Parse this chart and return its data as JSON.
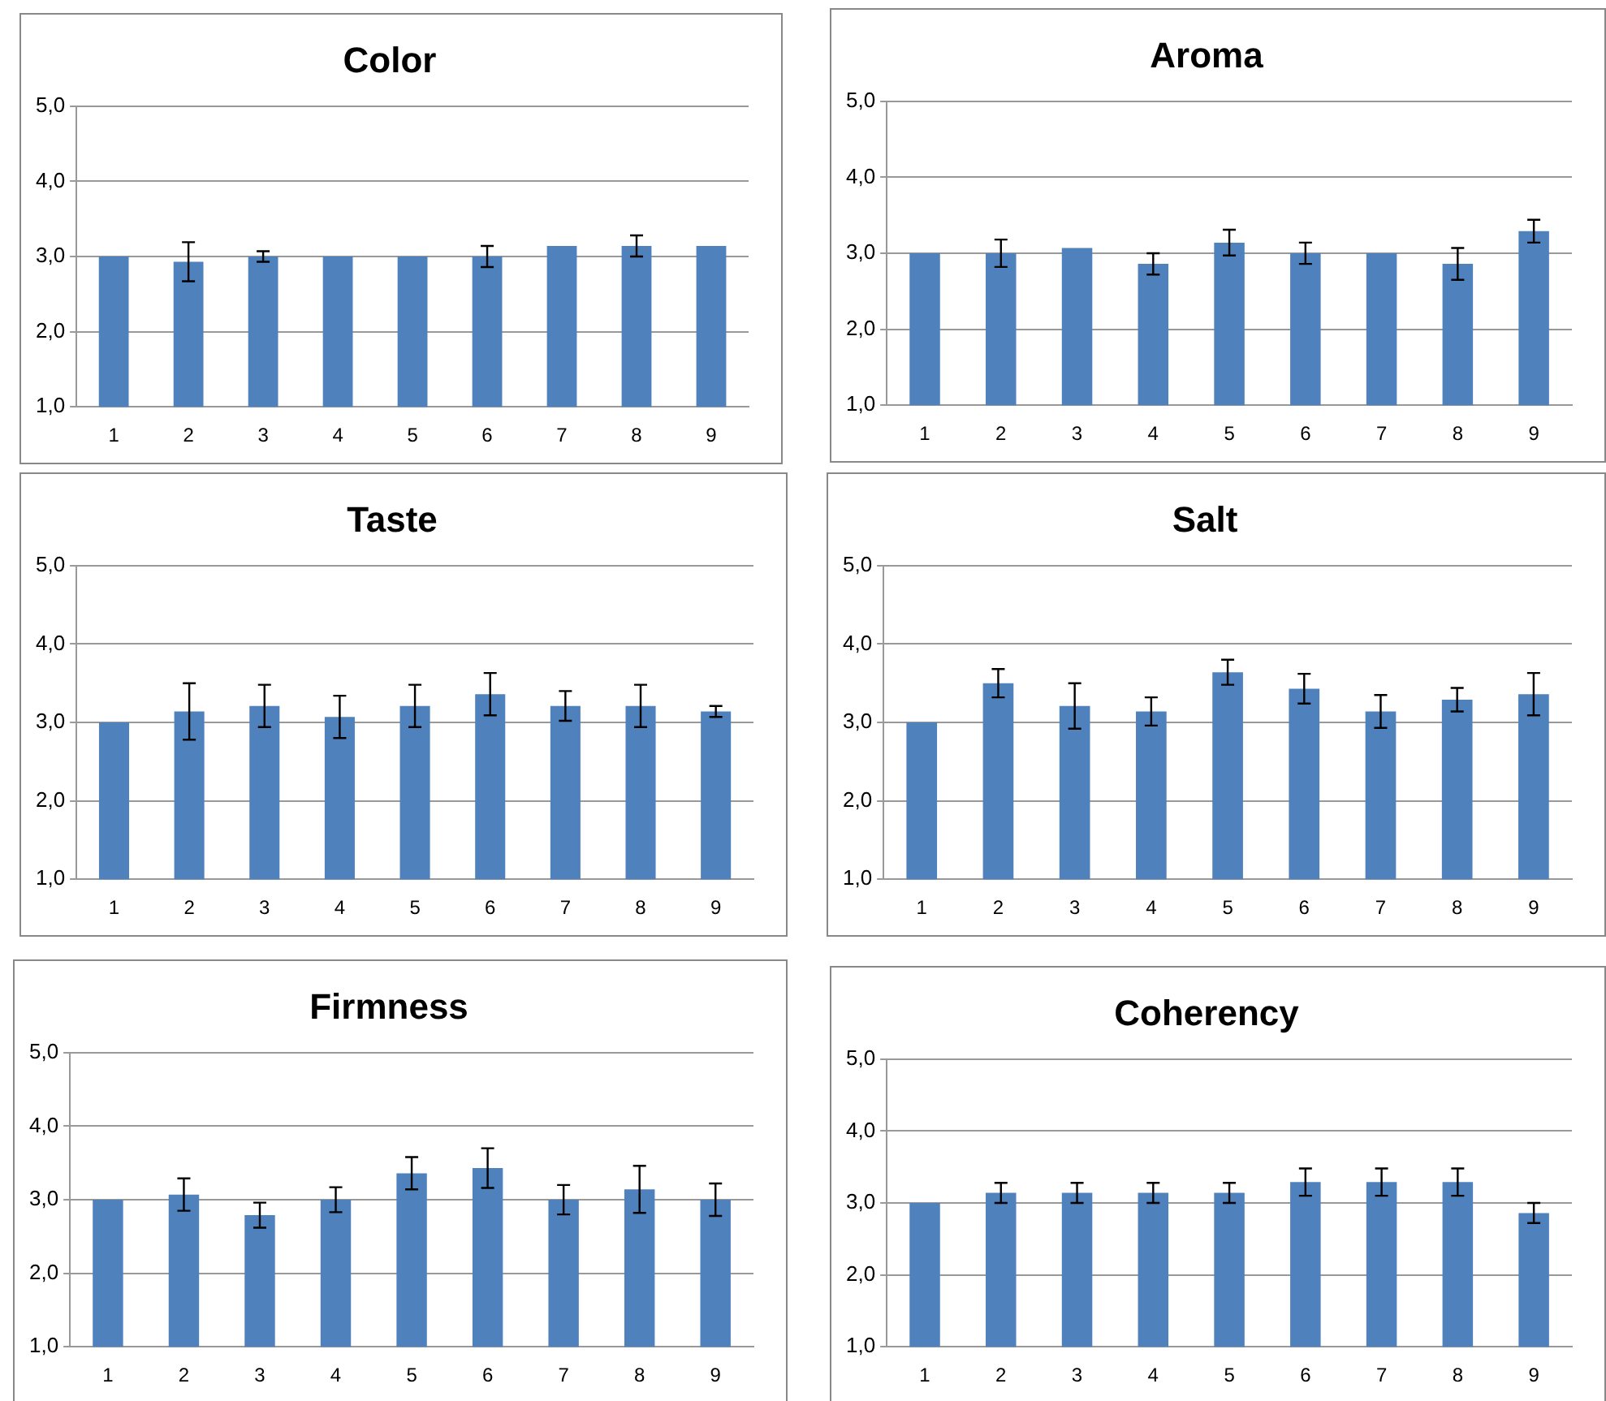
{
  "chart_data": [
    {
      "type": "bar",
      "title": "Color",
      "categories": [
        "1",
        "2",
        "3",
        "4",
        "5",
        "6",
        "7",
        "8",
        "9"
      ],
      "color": "#4f81bd",
      "grid": "y",
      "legend": false,
      "values": [
        3.0,
        2.93,
        3.0,
        3.0,
        3.0,
        3.0,
        3.14,
        3.14,
        3.14
      ],
      "errors": [
        null,
        0.26,
        0.07,
        null,
        null,
        0.14,
        null,
        0.14,
        null
      ],
      "ylim": [
        1,
        5
      ],
      "yticks": [
        {
          "value": 1,
          "label": "1,0"
        },
        {
          "value": 2,
          "label": "2,0"
        },
        {
          "value": 3,
          "label": "3,0"
        },
        {
          "value": 4,
          "label": "4,0"
        },
        {
          "value": 5,
          "label": "5,0"
        }
      ]
    },
    {
      "type": "bar",
      "title": "Aroma",
      "categories": [
        "1",
        "2",
        "3",
        "4",
        "5",
        "6",
        "7",
        "8",
        "9"
      ],
      "color": "#4f81bd",
      "grid": "y",
      "legend": false,
      "values": [
        3.0,
        3.0,
        3.07,
        2.86,
        3.14,
        3.0,
        3.0,
        2.86,
        3.29
      ],
      "errors": [
        null,
        0.18,
        null,
        0.14,
        0.17,
        0.14,
        null,
        0.21,
        0.15
      ],
      "ylim": [
        1,
        5
      ],
      "yticks": [
        {
          "value": 1,
          "label": "1,0"
        },
        {
          "value": 2,
          "label": "2,0"
        },
        {
          "value": 3,
          "label": "3,0"
        },
        {
          "value": 4,
          "label": "4,0"
        },
        {
          "value": 5,
          "label": "5,0"
        }
      ]
    },
    {
      "type": "bar",
      "title": "Taste",
      "categories": [
        "1",
        "2",
        "3",
        "4",
        "5",
        "6",
        "7",
        "8",
        "9"
      ],
      "color": "#4f81bd",
      "grid": "y",
      "legend": false,
      "values": [
        3.0,
        3.14,
        3.21,
        3.07,
        3.21,
        3.36,
        3.21,
        3.21,
        3.14
      ],
      "errors": [
        null,
        0.36,
        0.27,
        0.27,
        0.27,
        0.27,
        0.19,
        0.27,
        0.07
      ],
      "ylim": [
        1,
        5
      ],
      "yticks": [
        {
          "value": 1,
          "label": "1,0"
        },
        {
          "value": 2,
          "label": "2,0"
        },
        {
          "value": 3,
          "label": "3,0"
        },
        {
          "value": 4,
          "label": "4,0"
        },
        {
          "value": 5,
          "label": "5,0"
        }
      ]
    },
    {
      "type": "bar",
      "title": "Salt",
      "categories": [
        "1",
        "2",
        "3",
        "4",
        "5",
        "6",
        "7",
        "8",
        "9"
      ],
      "color": "#4f81bd",
      "grid": "y",
      "legend": false,
      "values": [
        3.0,
        3.5,
        3.21,
        3.14,
        3.64,
        3.43,
        3.14,
        3.29,
        3.36
      ],
      "errors": [
        null,
        0.18,
        0.29,
        0.18,
        0.16,
        0.19,
        0.21,
        0.15,
        0.27
      ],
      "ylim": [
        1,
        5
      ],
      "yticks": [
        {
          "value": 1,
          "label": "1,0"
        },
        {
          "value": 2,
          "label": "2,0"
        },
        {
          "value": 3,
          "label": "3,0"
        },
        {
          "value": 4,
          "label": "4,0"
        },
        {
          "value": 5,
          "label": "5,0"
        }
      ]
    },
    {
      "type": "bar",
      "title": "Firmness",
      "categories": [
        "1",
        "2",
        "3",
        "4",
        "5",
        "6",
        "7",
        "8",
        "9"
      ],
      "color": "#4f81bd",
      "grid": "y",
      "legend": false,
      "values": [
        3.0,
        3.07,
        2.79,
        3.0,
        3.36,
        3.43,
        3.0,
        3.14,
        3.0
      ],
      "errors": [
        null,
        0.22,
        0.17,
        0.17,
        0.22,
        0.27,
        0.2,
        0.32,
        0.22
      ],
      "ylim": [
        1,
        5
      ],
      "yticks": [
        {
          "value": 1,
          "label": "1,0"
        },
        {
          "value": 2,
          "label": "2,0"
        },
        {
          "value": 3,
          "label": "3,0"
        },
        {
          "value": 4,
          "label": "4,0"
        },
        {
          "value": 5,
          "label": "5,0"
        }
      ]
    },
    {
      "type": "bar",
      "title": "Coherency",
      "categories": [
        "1",
        "2",
        "3",
        "4",
        "5",
        "6",
        "7",
        "8",
        "9"
      ],
      "color": "#4f81bd",
      "grid": "y",
      "legend": false,
      "values": [
        3.0,
        3.14,
        3.14,
        3.14,
        3.14,
        3.29,
        3.29,
        3.29,
        2.86
      ],
      "errors": [
        null,
        0.14,
        0.14,
        0.14,
        0.14,
        0.19,
        0.19,
        0.19,
        0.14
      ],
      "ylim": [
        1,
        5
      ],
      "yticks": [
        {
          "value": 1,
          "label": "1,0"
        },
        {
          "value": 2,
          "label": "2,0"
        },
        {
          "value": 3,
          "label": "3,0"
        },
        {
          "value": 4,
          "label": "4,0"
        },
        {
          "value": 5,
          "label": "5,0"
        }
      ]
    }
  ]
}
